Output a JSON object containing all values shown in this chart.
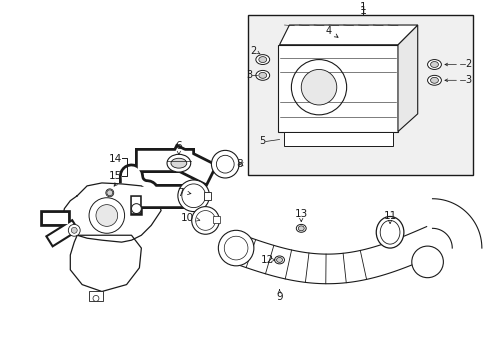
{
  "bg_color": "#ffffff",
  "line_color": "#1a1a1a",
  "box_fill": "#f0f0f0",
  "figsize": [
    4.89,
    3.6
  ],
  "dpi": 100
}
